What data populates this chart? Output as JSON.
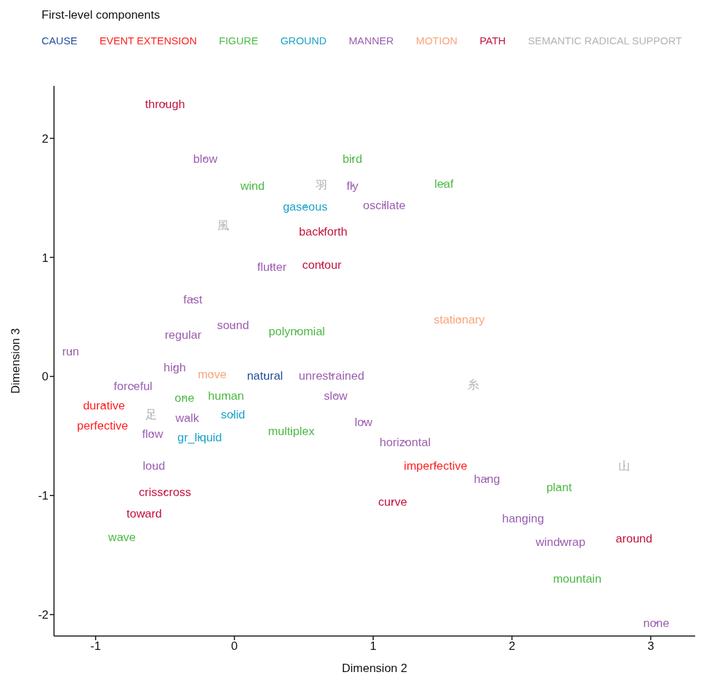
{
  "chart_data": {
    "type": "scatter",
    "legend_title": "First-level components",
    "xlabel": "Dimension 2",
    "ylabel": "Dimension 3",
    "xlim": [
      -1.3,
      3.32
    ],
    "ylim": [
      -2.18,
      2.44
    ],
    "xticks": [
      -1,
      0,
      1,
      2,
      3
    ],
    "yticks": [
      -2,
      -1,
      0,
      1,
      2
    ],
    "grid": false,
    "legend": "top",
    "series": [
      {
        "name": "CAUSE",
        "color": "#1f4e9a",
        "x": [
          0.22
        ],
        "values": [
          0.01
        ],
        "value_labels": [
          "natural"
        ]
      },
      {
        "name": "EVENT EXTENSION",
        "color": "#ff1f1f",
        "x": [
          -0.94,
          -0.95,
          1.45
        ],
        "values": [
          -0.24,
          -0.41,
          -0.75
        ],
        "value_labels": [
          "durative",
          "perfective",
          "imperfective"
        ]
      },
      {
        "name": "FIGURE",
        "color": "#4cb944",
        "x": [
          0.85,
          0.13,
          1.51,
          0.45,
          -0.36,
          -0.06,
          0.41,
          -0.81,
          2.34,
          2.47
        ],
        "values": [
          1.83,
          1.6,
          1.62,
          0.38,
          -0.18,
          -0.16,
          -0.46,
          -1.35,
          -0.93,
          -1.7
        ],
        "value_labels": [
          "bird",
          "wind",
          "leaf",
          "polynomial",
          "one",
          "human",
          "multiplex",
          "wave",
          "plant",
          "mountain"
        ]
      },
      {
        "name": "GROUND",
        "color": "#1ba3c6",
        "x": [
          0.51,
          -0.01,
          -0.25
        ],
        "values": [
          1.43,
          -0.32,
          -0.51
        ],
        "value_labels": [
          "gaseous",
          "solid",
          "gr_liquid"
        ]
      },
      {
        "name": "MANNER",
        "color": "#9b5fb0",
        "x": [
          -0.21,
          0.85,
          1.08,
          0.27,
          -0.3,
          -0.01,
          -0.37,
          -1.18,
          -0.43,
          0.7,
          -0.73,
          0.73,
          -0.34,
          -0.59,
          0.93,
          1.23,
          -0.58,
          1.82,
          2.08,
          2.35,
          3.04
        ],
        "values": [
          1.83,
          1.6,
          1.44,
          0.92,
          0.65,
          0.43,
          0.35,
          0.21,
          0.08,
          0.01,
          -0.08,
          -0.16,
          -0.35,
          -0.48,
          -0.38,
          -0.55,
          -0.75,
          -0.86,
          -1.19,
          -1.39,
          -2.07
        ],
        "value_labels": [
          "blow",
          "fly",
          "oscillate",
          "flutter",
          "fast",
          "sound",
          "regular",
          "run",
          "high",
          "unrestrained",
          "forceful",
          "slow",
          "walk",
          "flow",
          "low",
          "horizontal",
          "loud",
          "hang",
          "hanging",
          "windwrap",
          "none"
        ]
      },
      {
        "name": "MOTION",
        "color": "#f9a47c",
        "x": [
          -0.16,
          1.62
        ],
        "values": [
          0.02,
          0.48
        ],
        "value_labels": [
          "move",
          "stationary"
        ]
      },
      {
        "name": "PATH",
        "color": "#c2143d",
        "x": [
          -0.5,
          0.64,
          0.63,
          -0.5,
          -0.65,
          1.14,
          2.88
        ],
        "values": [
          2.29,
          1.22,
          0.94,
          -0.97,
          -1.15,
          -1.05,
          -1.36
        ],
        "value_labels": [
          "through",
          "backforth",
          "contour",
          "crisscross",
          "toward",
          "curve",
          "around"
        ]
      },
      {
        "name": "SEMANTIC RADICAL SUPPORT",
        "color": "#b0b4b8",
        "x": [
          0.63,
          -0.08,
          1.72,
          -0.6,
          2.81
        ],
        "values": [
          1.61,
          1.27,
          -0.07,
          -0.32,
          -0.75
        ],
        "value_labels": [
          "羽",
          "風",
          "糸",
          "足",
          "山"
        ]
      }
    ]
  }
}
